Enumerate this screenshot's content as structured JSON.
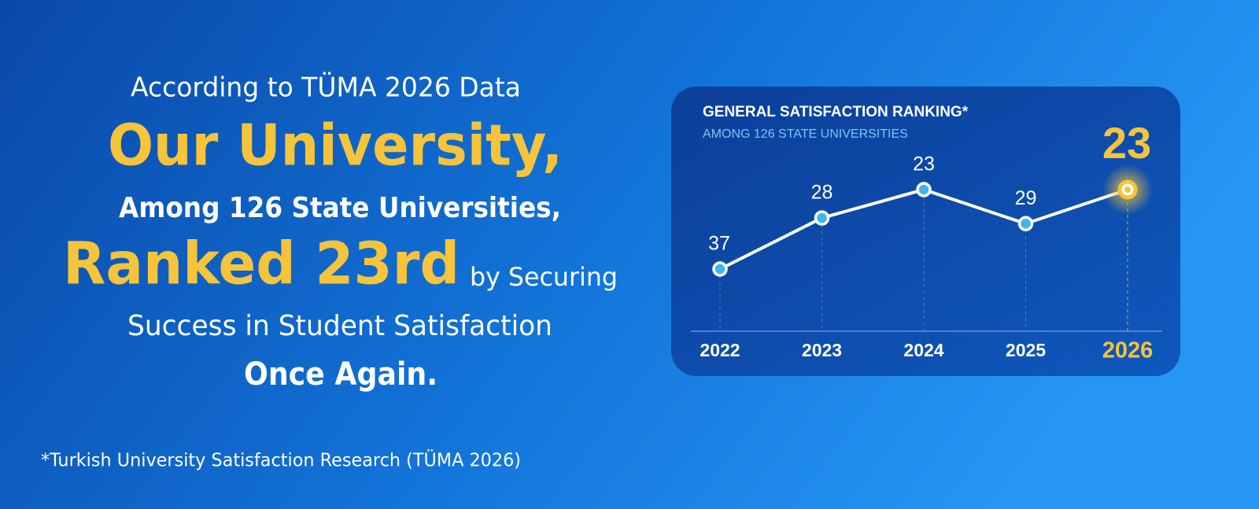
{
  "headline": {
    "intro": "According to TÜMA 2026 Data",
    "line1": "Our University,",
    "line2": "Among 126 State Universities,",
    "line3_emphasis": "Ranked 23rd",
    "line3_rest": "by Securing",
    "line4": "Success in Student Satisfaction",
    "line5": "Once Again."
  },
  "footnote": "*Turkish University Satisfaction Research (TÜMA 2026)",
  "chart_data": {
    "type": "line",
    "title": "GENERAL SATISFACTION RANKING*",
    "subtitle": "AMONG 126 STATE UNIVERSITIES",
    "categories": [
      "2022",
      "2023",
      "2024",
      "2025",
      "2026"
    ],
    "values": [
      37,
      28,
      23,
      29,
      23
    ],
    "color": "#ffffff",
    "marker_color": "#3fb6f2",
    "highlight_color": "#f5c43a",
    "inverted": true
  }
}
